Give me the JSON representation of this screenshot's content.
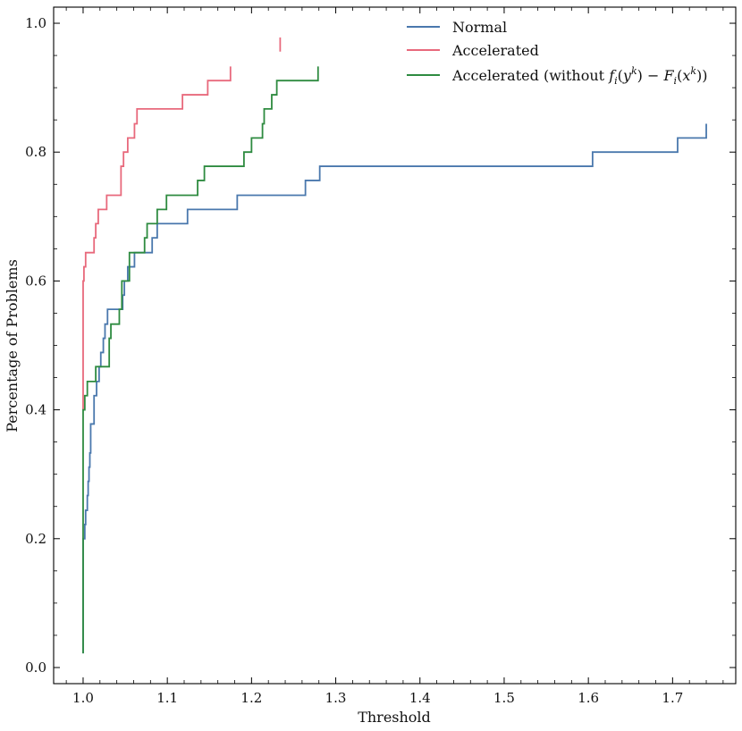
{
  "chart_data": {
    "type": "line",
    "xlabel": "Threshold",
    "ylabel": "Percentage of Problems",
    "xlim": [
      0.965,
      1.775
    ],
    "ylim": [
      -0.025,
      1.025
    ],
    "x_ticks": [
      1.0,
      1.1,
      1.2,
      1.3,
      1.4,
      1.5,
      1.6,
      1.7
    ],
    "x_tick_labels": [
      "1.0",
      "1.1",
      "1.2",
      "1.3",
      "1.4",
      "1.5",
      "1.6",
      "1.7"
    ],
    "y_ticks": [
      0.0,
      0.2,
      0.4,
      0.6,
      0.8,
      1.0
    ],
    "y_tick_labels": [
      "0.0",
      "0.2",
      "0.4",
      "0.6",
      "0.8",
      "1.0"
    ],
    "legend_position": "top-right",
    "series": [
      {
        "name": "Normal",
        "color": "#4a78ad",
        "x": [
          1.0,
          1.0,
          1.002,
          1.002,
          1.003,
          1.003,
          1.005,
          1.005,
          1.006,
          1.006,
          1.007,
          1.007,
          1.008,
          1.008,
          1.009,
          1.009,
          1.013,
          1.013,
          1.016,
          1.016,
          1.019,
          1.019,
          1.021,
          1.021,
          1.024,
          1.024,
          1.026,
          1.026,
          1.029,
          1.029,
          1.03,
          1.03,
          1.047,
          1.047,
          1.049,
          1.049,
          1.053,
          1.053,
          1.061,
          1.061,
          1.066,
          1.066,
          1.082,
          1.082,
          1.088,
          1.088,
          1.091,
          1.091,
          1.124,
          1.124,
          1.183,
          1.183,
          1.264,
          1.264,
          1.281,
          1.281,
          1.605,
          1.605,
          1.706,
          1.706,
          1.74,
          1.74
        ],
        "y": [
          0.022,
          0.2,
          0.2,
          0.222,
          0.222,
          0.244,
          0.244,
          0.267,
          0.267,
          0.289,
          0.289,
          0.311,
          0.311,
          0.333,
          0.333,
          0.378,
          0.378,
          0.422,
          0.422,
          0.444,
          0.444,
          0.467,
          0.467,
          0.489,
          0.489,
          0.511,
          0.511,
          0.533,
          0.533,
          0.556,
          0.556,
          0.556,
          0.556,
          0.578,
          0.578,
          0.6,
          0.6,
          0.622,
          0.622,
          0.644,
          0.644,
          0.644,
          0.644,
          0.667,
          0.667,
          0.689,
          0.689,
          0.689,
          0.689,
          0.711,
          0.711,
          0.733,
          0.733,
          0.756,
          0.756,
          0.778,
          0.778,
          0.8,
          0.8,
          0.822,
          0.822,
          0.844
        ]
      },
      {
        "name": "Accelerated",
        "color": "#e8697c",
        "x": [
          1.0,
          1.0,
          1.001,
          1.001,
          1.003,
          1.003,
          1.013,
          1.013,
          1.015,
          1.015,
          1.018,
          1.018,
          1.028,
          1.028,
          1.045,
          1.045,
          1.048,
          1.048,
          1.053,
          1.053,
          1.061,
          1.061,
          1.064,
          1.064,
          1.066,
          1.066,
          1.118,
          1.118,
          1.148,
          1.148,
          1.175,
          1.175
        ],
        "y": [
          0.4,
          0.6,
          0.6,
          0.622,
          0.622,
          0.644,
          0.644,
          0.667,
          0.667,
          0.689,
          0.689,
          0.711,
          0.711,
          0.733,
          0.733,
          0.778,
          0.778,
          0.8,
          0.8,
          0.822,
          0.822,
          0.844,
          0.844,
          0.867,
          0.867,
          0.867,
          0.867,
          0.889,
          0.889,
          0.911,
          0.911,
          0.933
        ]
      },
      {
        "name": "Accelerated (without f_i(y^k) − F_i(x^k))",
        "color": "#2e8b40",
        "x": [
          1.0,
          1.0,
          1.002,
          1.002,
          1.005,
          1.005,
          1.015,
          1.015,
          1.031,
          1.031,
          1.033,
          1.033,
          1.043,
          1.043,
          1.046,
          1.046,
          1.055,
          1.055,
          1.073,
          1.073,
          1.076,
          1.076,
          1.088,
          1.088,
          1.099,
          1.099,
          1.12,
          1.12,
          1.136,
          1.136,
          1.144,
          1.144,
          1.191,
          1.191,
          1.2,
          1.2,
          1.213,
          1.213,
          1.215,
          1.215,
          1.224,
          1.224,
          1.23,
          1.23,
          1.279,
          1.279
        ],
        "y": [
          0.022,
          0.4,
          0.4,
          0.422,
          0.422,
          0.444,
          0.444,
          0.467,
          0.467,
          0.511,
          0.511,
          0.533,
          0.533,
          0.556,
          0.556,
          0.6,
          0.6,
          0.644,
          0.644,
          0.667,
          0.667,
          0.689,
          0.689,
          0.711,
          0.711,
          0.733,
          0.733,
          0.733,
          0.733,
          0.756,
          0.756,
          0.778,
          0.778,
          0.8,
          0.8,
          0.822,
          0.822,
          0.844,
          0.844,
          0.867,
          0.867,
          0.889,
          0.889,
          0.911,
          0.911,
          0.933
        ]
      }
    ],
    "extra_segments": [
      {
        "series": "Accelerated",
        "color": "#e8697c",
        "x": [
          1.234,
          1.234
        ],
        "y": [
          0.956,
          0.978
        ]
      }
    ],
    "legend": {
      "entries": [
        {
          "label": "Normal",
          "color": "#4a78ad"
        },
        {
          "label": "Accelerated",
          "color": "#e8697c"
        },
        {
          "label": "Accelerated (without ",
          "math": "fi(yk) − Fi(xk)",
          "suffix": ")",
          "color": "#2e8b40"
        }
      ]
    }
  }
}
